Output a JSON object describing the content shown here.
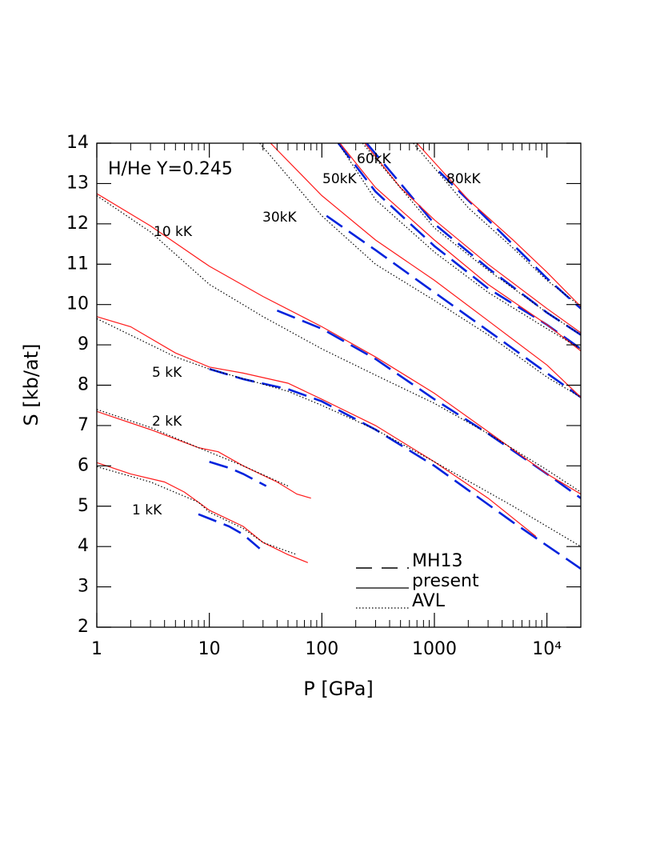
{
  "chart_data": {
    "type": "line",
    "x_label": "P [GPa]",
    "y_label": "S [kb/at]",
    "xscale": "log",
    "xlim": [
      1,
      20000
    ],
    "ylim": [
      2,
      14
    ],
    "xticks": [
      1,
      10,
      100,
      1000,
      {
        "value": 10000,
        "label": "10⁴"
      }
    ],
    "yticks": [
      2,
      3,
      4,
      5,
      6,
      7,
      8,
      9,
      10,
      11,
      12,
      13,
      14
    ],
    "annotations": [
      "H/He Y=0.245",
      "10 kK",
      "5 kK",
      "2 kK",
      "1 kK",
      "30kK",
      "50kK",
      "60kK",
      "80kK"
    ],
    "legend": "lower center",
    "series": [
      {
        "name": "MH13",
        "color": "#0022dd",
        "style": "dashed",
        "x": [
          8,
          15,
          20,
          28
        ],
        "values": [
          4.8,
          4.5,
          4.3,
          3.95
        ]
      },
      {
        "name": "present",
        "color": "#ff1a1a",
        "style": "solid",
        "x": [
          1,
          2,
          4,
          6,
          10,
          20,
          30,
          50,
          75
        ],
        "values": [
          6.08,
          5.8,
          5.6,
          5.35,
          4.9,
          4.5,
          4.1,
          3.8,
          3.6
        ]
      },
      {
        "name": "AVL",
        "color": "#000000",
        "style": "dotted",
        "x": [
          1,
          3,
          8,
          10,
          20,
          30,
          60
        ],
        "values": [
          5.98,
          5.6,
          5.1,
          4.85,
          4.45,
          4.1,
          3.8
        ]
      },
      {
        "name": "MH13",
        "color": "#0022dd",
        "style": "dashed",
        "x": [
          10,
          15,
          20,
          32
        ],
        "values": [
          6.1,
          5.95,
          5.8,
          5.5
        ]
      },
      {
        "name": "present",
        "color": "#ff1a1a",
        "style": "solid",
        "x": [
          1,
          3,
          8,
          12,
          20,
          40,
          60,
          80
        ],
        "values": [
          7.35,
          6.9,
          6.45,
          6.35,
          6.0,
          5.6,
          5.3,
          5.2
        ]
      },
      {
        "name": "AVL",
        "color": "#000000",
        "style": "dotted",
        "x": [
          1,
          3,
          8,
          20,
          50
        ],
        "values": [
          7.4,
          6.95,
          6.45,
          6.0,
          5.5
        ]
      },
      {
        "name": "MH13",
        "color": "#0022dd",
        "style": "dashed",
        "x": [
          10,
          20,
          50,
          100,
          300,
          1000,
          5000,
          20000
        ],
        "values": [
          8.4,
          8.15,
          7.9,
          7.6,
          6.9,
          6.0,
          4.6,
          3.45
        ]
      },
      {
        "name": "present",
        "color": "#ff1a1a",
        "style": "solid",
        "x": [
          1,
          2,
          5,
          10,
          20,
          50,
          100,
          300,
          1000,
          3000,
          8000
        ],
        "values": [
          9.7,
          9.45,
          8.8,
          8.45,
          8.3,
          8.05,
          7.65,
          7.0,
          6.1,
          5.2,
          4.25
        ]
      },
      {
        "name": "AVL",
        "color": "#000000",
        "style": "dotted",
        "x": [
          1,
          5,
          10,
          50,
          100,
          300,
          1000,
          5000,
          20000
        ],
        "values": [
          9.65,
          8.7,
          8.4,
          7.85,
          7.5,
          6.9,
          6.1,
          5.0,
          4.0
        ]
      },
      {
        "name": "MH13",
        "color": "#0022dd",
        "style": "dashed",
        "x": [
          40,
          100,
          300,
          1000,
          3000,
          10000,
          20000
        ],
        "values": [
          9.85,
          9.4,
          8.65,
          7.65,
          6.8,
          5.8,
          5.2
        ]
      },
      {
        "name": "present",
        "color": "#ff1a1a",
        "style": "solid",
        "x": [
          1,
          3,
          10,
          30,
          100,
          300,
          1000,
          3000,
          10000,
          20000
        ],
        "values": [
          12.75,
          11.95,
          10.95,
          10.2,
          9.45,
          8.7,
          7.8,
          6.85,
          5.8,
          5.3
        ]
      },
      {
        "name": "AVL",
        "color": "#000000",
        "style": "dotted",
        "x": [
          1,
          3,
          10,
          30,
          100,
          300,
          1000,
          3000,
          10000,
          20000
        ],
        "values": [
          12.7,
          11.8,
          10.5,
          9.7,
          8.9,
          8.25,
          7.55,
          6.8,
          5.9,
          5.35
        ]
      },
      {
        "name": "MH13",
        "color": "#0022dd",
        "style": "dashed",
        "x": [
          110,
          300,
          1000,
          3000,
          10000,
          20000
        ],
        "values": [
          12.2,
          11.35,
          10.3,
          9.35,
          8.3,
          7.7
        ]
      },
      {
        "name": "present",
        "color": "#ff1a1a",
        "style": "solid",
        "x": [
          35,
          100,
          300,
          1000,
          3000,
          10000,
          20000
        ],
        "values": [
          14,
          12.7,
          11.6,
          10.6,
          9.6,
          8.5,
          7.7
        ]
      },
      {
        "name": "AVL",
        "color": "#000000",
        "style": "dotted",
        "x": [
          28,
          100,
          300,
          1000,
          3000,
          10000,
          20000
        ],
        "values": [
          14,
          12.2,
          11.0,
          10.1,
          9.25,
          8.2,
          7.7
        ]
      },
      {
        "name": "MH13",
        "color": "#0022dd",
        "style": "dashed",
        "x": [
          140,
          300,
          1000,
          3000,
          10000,
          20000
        ],
        "values": [
          14,
          12.8,
          11.45,
          10.4,
          9.5,
          8.9
        ]
      },
      {
        "name": "present",
        "color": "#ff1a1a",
        "style": "solid",
        "x": [
          145,
          300,
          1000,
          3000,
          10000,
          20000
        ],
        "values": [
          14,
          12.9,
          11.6,
          10.5,
          9.5,
          8.85
        ]
      },
      {
        "name": "AVL",
        "color": "#000000",
        "style": "dotted",
        "x": [
          140,
          300,
          1000,
          3000,
          10000,
          20000
        ],
        "values": [
          14,
          12.6,
          11.3,
          10.3,
          9.4,
          8.9
        ]
      },
      {
        "name": "MH13",
        "color": "#0022dd",
        "style": "dashed",
        "x": [
          250,
          1000,
          3000,
          10000,
          20000
        ],
        "values": [
          14,
          12.0,
          10.9,
          9.8,
          9.25
        ]
      },
      {
        "name": "present",
        "color": "#ff1a1a",
        "style": "solid",
        "x": [
          240,
          500,
          1000,
          3000,
          10000,
          20000
        ],
        "values": [
          14,
          12.9,
          12.1,
          11.0,
          9.9,
          9.3
        ]
      },
      {
        "name": "AVL",
        "color": "#000000",
        "style": "dotted",
        "x": [
          230,
          1000,
          3000,
          10000,
          20000
        ],
        "values": [
          14,
          11.9,
          10.85,
          9.8,
          9.25
        ]
      },
      {
        "name": "MH13",
        "color": "#0022dd",
        "style": "dashed",
        "x": [
          1100,
          3000,
          10000,
          20000
        ],
        "values": [
          13.3,
          12.1,
          10.65,
          9.9
        ]
      },
      {
        "name": "present",
        "color": "#ff1a1a",
        "style": "solid",
        "x": [
          700,
          2000,
          5000,
          10000,
          20000
        ],
        "values": [
          14,
          12.6,
          11.6,
          10.8,
          9.95
        ]
      },
      {
        "name": "AVL",
        "color": "#000000",
        "style": "dotted",
        "x": [
          650,
          2000,
          5000,
          10000,
          20000
        ],
        "values": [
          14,
          12.4,
          11.4,
          10.6,
          9.95
        ]
      }
    ]
  }
}
